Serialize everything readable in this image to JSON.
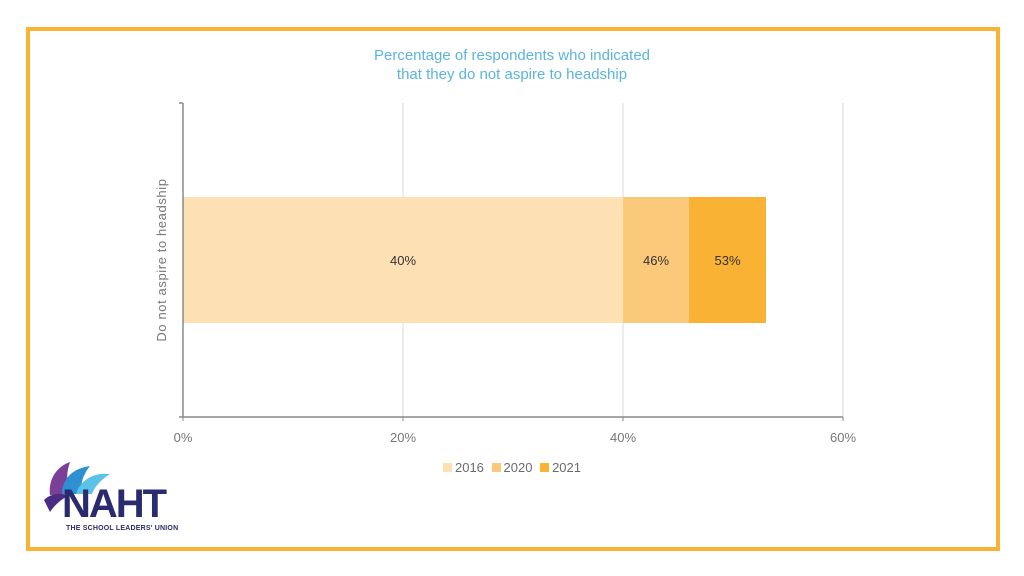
{
  "colors": {
    "frame": "#f9b233",
    "title": "#5bb4df",
    "s2016": "#fde1b4",
    "s2020": "#fbc97a",
    "s2021": "#f9b233",
    "axis": "#8a8a8a",
    "grid": "#d9d9d9",
    "text": "#555555"
  },
  "logo": {
    "name": "NAHT",
    "tagline": "THE SCHOOL LEADERS' UNION"
  },
  "chart_data": {
    "type": "bar",
    "orientation": "horizontal",
    "title_lines": [
      "Percentage of respondents who indicated",
      "that they do not aspire to headship"
    ],
    "ylabel": "Do not aspire to headship",
    "categories": [
      "Do not aspire to headship"
    ],
    "series": [
      {
        "name": "2016",
        "values": [
          40
        ],
        "label": "40%"
      },
      {
        "name": "2020",
        "values": [
          46
        ],
        "label": "46%"
      },
      {
        "name": "2021",
        "values": [
          53
        ],
        "label": "53%"
      }
    ],
    "xlim": [
      0,
      60
    ],
    "xticks": [
      0,
      20,
      40,
      60
    ],
    "xtick_labels": [
      "0%",
      "20%",
      "40%",
      "60%"
    ],
    "grid": true,
    "legend_position": "bottom"
  }
}
